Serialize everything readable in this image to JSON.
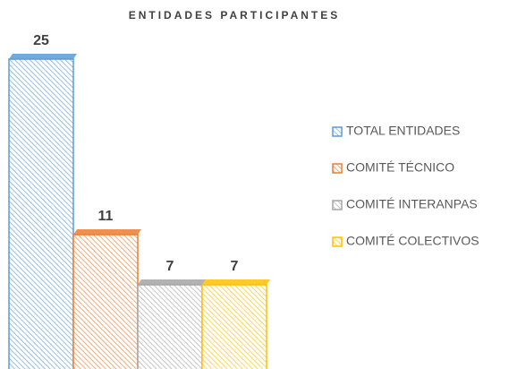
{
  "chart_data": {
    "type": "bar",
    "title": "ENTIDADES PARTICIPANTES",
    "categories": [
      null
    ],
    "series": [
      {
        "name": "TOTAL ENTIDADES",
        "color": "#5b9bd5",
        "values": [
          25
        ]
      },
      {
        "name": "COMITÉ TÉCNICO",
        "color": "#ed7d31",
        "values": [
          11
        ]
      },
      {
        "name": "COMITÉ INTERANPAS",
        "color": "#a5a5a5",
        "values": [
          7
        ]
      },
      {
        "name": "COMITÉ COLECTIVOS",
        "color": "#ffc000",
        "values": [
          7
        ]
      }
    ],
    "legend": "right"
  }
}
